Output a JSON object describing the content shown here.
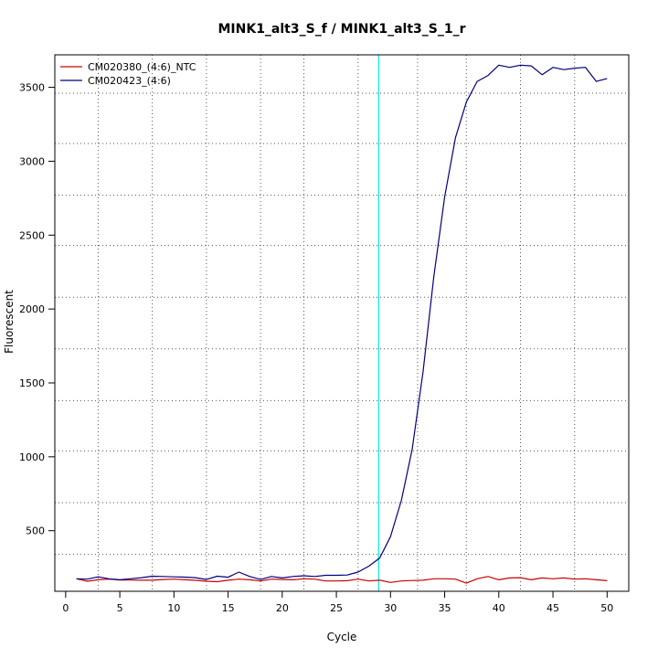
{
  "chart_data": {
    "type": "line",
    "title": "MINK1_alt3_S_f / MINK1_alt3_S_1_r",
    "xlabel": "Cycle",
    "ylabel": "Fluorescent",
    "xlim": [
      -1,
      52
    ],
    "ylim": [
      90,
      3720
    ],
    "x_ticks": [
      0,
      5,
      10,
      15,
      20,
      25,
      30,
      35,
      40,
      45,
      50
    ],
    "y_ticks": [
      500,
      1000,
      1500,
      2000,
      2500,
      3000,
      3500
    ],
    "grid": "dotted",
    "grid_x": [
      3,
      8,
      13,
      18,
      22,
      27,
      32.5,
      37,
      42,
      47
    ],
    "grid_y": [
      340,
      690,
      1040,
      1380,
      1730,
      2080,
      2430,
      2770,
      3120,
      3460
    ],
    "threshold_x": 28.9,
    "threshold_color": "#00e5ee",
    "legend_position": "top-left",
    "x": [
      1,
      2,
      3,
      4,
      5,
      6,
      7,
      8,
      9,
      10,
      11,
      12,
      13,
      14,
      15,
      16,
      17,
      18,
      19,
      20,
      21,
      22,
      23,
      24,
      25,
      26,
      27,
      28,
      29,
      30,
      31,
      32,
      33,
      34,
      35,
      36,
      37,
      38,
      39,
      40,
      41,
      42,
      43,
      44,
      45,
      46,
      47,
      48,
      49,
      50
    ],
    "series": [
      {
        "name": "CM020380_(4:6)_NTC",
        "color": "#cc0000",
        "values": [
          175,
          158,
          168,
          172,
          166,
          166,
          165,
          165,
          170,
          172,
          168,
          164,
          158,
          155,
          165,
          172,
          168,
          160,
          172,
          170,
          168,
          175,
          172,
          160,
          160,
          162,
          172,
          160,
          165,
          150,
          160,
          163,
          165,
          175,
          175,
          172,
          145,
          175,
          190,
          168,
          180,
          182,
          168,
          180,
          175,
          180,
          172,
          175,
          168,
          162
        ]
      },
      {
        "name": "CM020423_(4:6)",
        "color": "#000080",
        "values": [
          175,
          172,
          188,
          175,
          168,
          175,
          182,
          192,
          190,
          188,
          186,
          182,
          170,
          192,
          185,
          220,
          190,
          170,
          190,
          180,
          190,
          195,
          190,
          198,
          198,
          200,
          220,
          260,
          315,
          460,
          705,
          1050,
          1575,
          2220,
          2760,
          3160,
          3400,
          3540,
          3580,
          3650,
          3635,
          3650,
          3645,
          3585,
          3635,
          3620,
          3630,
          3635,
          3540,
          3560
        ]
      }
    ]
  }
}
